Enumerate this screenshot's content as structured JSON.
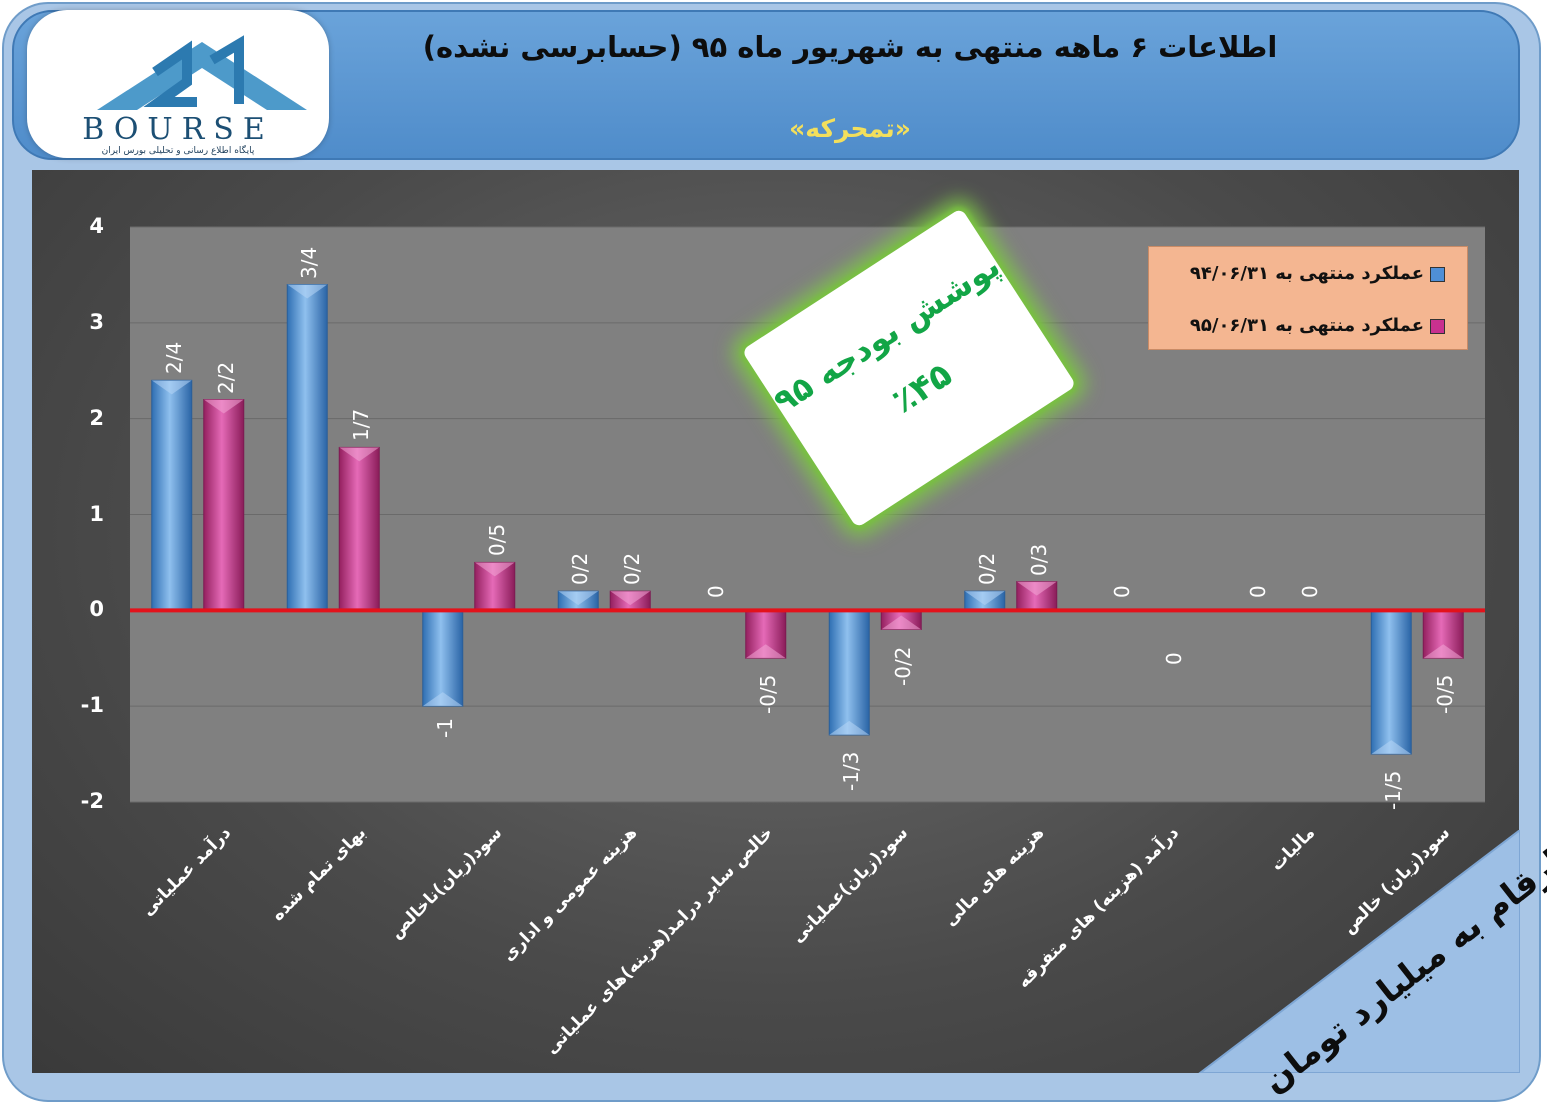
{
  "header": {
    "title": "اطلاعات ۶ ماهه منتهی به شهریور ماه ۹۵ (حسابرسی نشده)",
    "subtitle": "«تمحرکه»"
  },
  "logo": {
    "word": "BOURSE",
    "subtitle": "پایگاه اطلاع رسانی و تحلیلی بورس ایران"
  },
  "callout": {
    "line1": "پوشش بودجه ۹۵",
    "line2": "٪۴۵"
  },
  "unit_note": "ارقام به میلیارد تومان",
  "colors": {
    "series_1": "#4f8fd6",
    "series_2": "#c8318f",
    "zero_line": "#e3121b",
    "callout_text": "#12a546"
  },
  "chart_data": {
    "type": "bar",
    "categories": [
      "درآمد عملیاتی",
      "بهای تمام شده",
      "سود(زیان)ناخالص",
      "هزینه عمومی و اداری",
      "خالص سایر درامد(هزینه)های عملیاتی",
      "سود(زیان)عملیاتی",
      "هزینه های مالی",
      "درآمد (هزینه) های متفرقه",
      "مالیات",
      "سود(زیان) خالص"
    ],
    "series": [
      {
        "name": "عملکرد منتهی به ۹۴/۰۶/۳۱",
        "values": [
          2.4,
          3.4,
          -1,
          0.2,
          0,
          -1.3,
          0.2,
          0,
          0,
          -1.5
        ],
        "labels": [
          "2/4",
          "3/4",
          "-1",
          "0/2",
          "0",
          "-1/3",
          "0/2",
          "0",
          "0",
          "-1/5"
        ]
      },
      {
        "name": "عملکرد منتهی به ۹۵/۰۶/۳۱",
        "values": [
          2.2,
          1.7,
          0.5,
          0.2,
          -0.5,
          -0.2,
          0.3,
          0,
          0,
          -0.5
        ],
        "labels": [
          "2/2",
          "1/7",
          "0/5",
          "0/2",
          "-0/5",
          "-0/2",
          "0/3",
          "0",
          "0",
          "-0/5"
        ]
      }
    ],
    "y_ticks": [
      "4",
      "3",
      "2",
      "1",
      "0",
      "-1",
      "-2"
    ],
    "ylim": [
      -2,
      4
    ],
    "grid": true,
    "legend_position": "top-right"
  }
}
